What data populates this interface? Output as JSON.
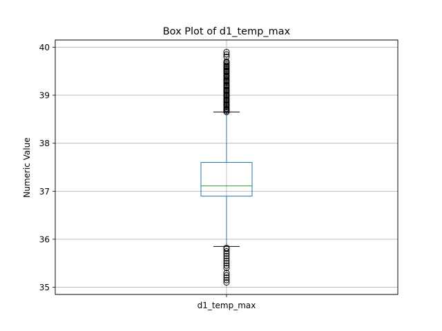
{
  "chart_data": {
    "type": "box",
    "title": "Box Plot of d1_temp_max",
    "xlabel": "",
    "ylabel": "Numeric Value",
    "categories": [
      "d1_temp_max"
    ],
    "ylim": [
      34.85,
      40.15
    ],
    "yticks": [
      35,
      36,
      37,
      38,
      39,
      40
    ],
    "grid": true,
    "boxes": [
      {
        "name": "d1_temp_max",
        "whisker_low": 35.85,
        "q1": 36.9,
        "median": 37.11,
        "q3": 37.6,
        "whisker_high": 38.65,
        "outliers_high": [
          38.65,
          38.68,
          38.7,
          38.72,
          38.75,
          38.78,
          38.8,
          38.82,
          38.85,
          38.88,
          38.9,
          38.92,
          38.95,
          38.98,
          39.0,
          39.02,
          39.05,
          39.08,
          39.1,
          39.12,
          39.15,
          39.18,
          39.2,
          39.22,
          39.25,
          39.28,
          39.3,
          39.32,
          39.35,
          39.38,
          39.4,
          39.42,
          39.45,
          39.48,
          39.5,
          39.52,
          39.55,
          39.58,
          39.6,
          39.62,
          39.65,
          39.68,
          39.7,
          39.8,
          39.85,
          39.9
        ],
        "outliers_low": [
          35.1,
          35.15,
          35.2,
          35.25,
          35.3,
          35.4,
          35.45,
          35.5,
          35.55,
          35.6,
          35.65,
          35.7,
          35.75,
          35.8,
          35.82
        ]
      }
    ],
    "colors": {
      "box": "#1f77b4",
      "median": "#2ca02c",
      "whisker_cap": "#000000",
      "outlier": "#000000",
      "grid": "#b0b0b0"
    }
  }
}
